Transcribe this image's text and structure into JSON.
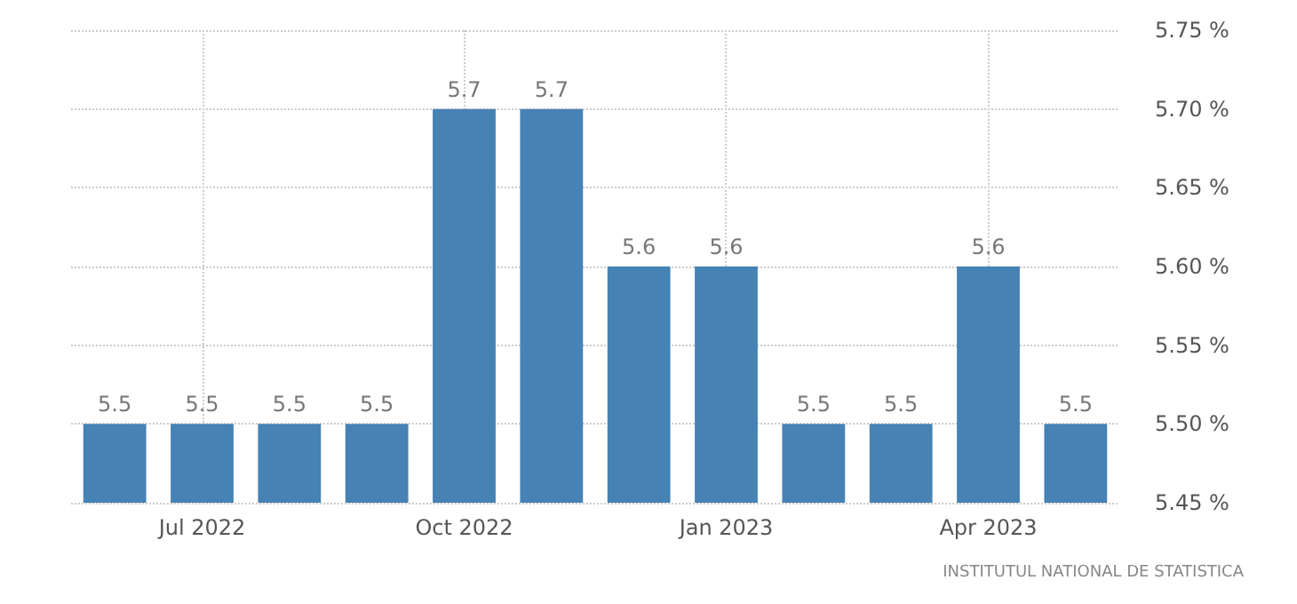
{
  "chart_data": {
    "type": "bar",
    "categories": [
      null,
      "Jul 2022",
      null,
      null,
      "Oct 2022",
      null,
      null,
      "Jan 2023",
      null,
      null,
      "Apr 2023",
      null
    ],
    "values": [
      5.5,
      5.5,
      5.5,
      5.5,
      5.7,
      5.7,
      5.6,
      5.6,
      5.5,
      5.5,
      5.6,
      5.5
    ],
    "color": "#4682b4",
    "ylim": [
      5.45,
      5.75
    ],
    "yticks": [
      {
        "value": 5.45,
        "label": "5.45 %"
      },
      {
        "value": 5.5,
        "label": "5.50 %"
      },
      {
        "value": 5.55,
        "label": "5.55 %"
      },
      {
        "value": 5.6,
        "label": "5.60 %"
      },
      {
        "value": 5.65,
        "label": "5.65 %"
      },
      {
        "value": 5.7,
        "label": "5.70 %"
      },
      {
        "value": 5.75,
        "label": "5.75 %"
      }
    ],
    "grid": true,
    "data_labels": true,
    "annotations": [
      "INSTITUTUL NATIONAL DE STATISTICA"
    ]
  }
}
